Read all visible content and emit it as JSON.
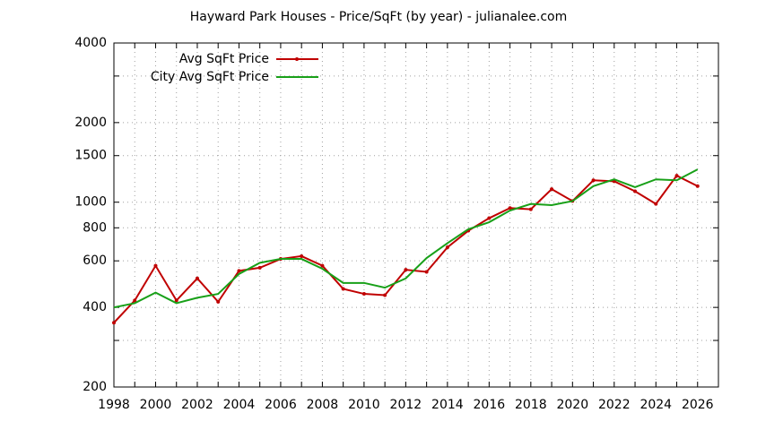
{
  "chart_data": {
    "type": "line",
    "title": "Hayward Park Houses - Price/SqFt (by year) - julianalee.com",
    "x": [
      1998,
      1999,
      2000,
      2001,
      2002,
      2003,
      2004,
      2005,
      2006,
      2007,
      2008,
      2009,
      2010,
      2011,
      2012,
      2013,
      2014,
      2015,
      2016,
      2017,
      2018,
      2019,
      2020,
      2021,
      2022,
      2023,
      2024,
      2025,
      2026
    ],
    "series": [
      {
        "name": "Avg SqFt Price",
        "color": "#c00000",
        "markers": true,
        "values": [
          350,
          425,
          575,
          425,
          515,
          420,
          550,
          565,
          610,
          625,
          575,
          470,
          450,
          445,
          555,
          545,
          675,
          780,
          870,
          950,
          940,
          1120,
          1010,
          1210,
          1200,
          1100,
          985,
          1260,
          1150
        ]
      },
      {
        "name": "City Avg SqFt Price",
        "color": "#18a018",
        "markers": false,
        "values": [
          400,
          415,
          455,
          415,
          435,
          450,
          535,
          590,
          610,
          610,
          560,
          495,
          495,
          475,
          515,
          615,
          700,
          790,
          840,
          930,
          985,
          975,
          1010,
          1150,
          1220,
          1140,
          1220,
          1210,
          1330
        ]
      }
    ],
    "xlim": [
      1998,
      2027
    ],
    "xticks": [
      1998,
      2000,
      2002,
      2004,
      2006,
      2008,
      2010,
      2012,
      2014,
      2016,
      2018,
      2020,
      2022,
      2024,
      2026
    ],
    "xminorticks": [
      1999,
      2001,
      2003,
      2005,
      2007,
      2009,
      2011,
      2013,
      2015,
      2017,
      2019,
      2021,
      2023,
      2025,
      2027
    ],
    "ylim": [
      200,
      4000
    ],
    "yticks": [
      200,
      400,
      600,
      800,
      1000,
      1500,
      2000,
      4000
    ],
    "yminorticks": [
      300,
      3000
    ],
    "log_y": true,
    "grid": true,
    "legend": "top-left"
  }
}
